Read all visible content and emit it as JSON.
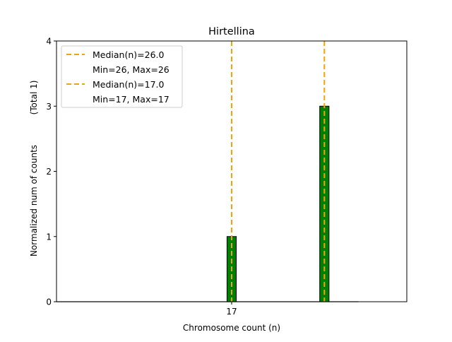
{
  "chart_data": {
    "type": "bar",
    "title": "Hirtellina",
    "xlabel": "Chromosome count (n)",
    "ylabel": "Normalized num of counts",
    "ylabel_note": "(Total 1)",
    "xlim": [
      0,
      34
    ],
    "ylim": [
      0,
      4
    ],
    "yticks": [
      0,
      1,
      2,
      3,
      4
    ],
    "xticks": [
      17
    ],
    "grid": false,
    "bars": [
      {
        "x": 17,
        "value": 1
      },
      {
        "x": 26,
        "value": 3
      }
    ],
    "bar_color": "#008000",
    "median_lines": [
      {
        "x": 26,
        "label": "Median(n)=26.0",
        "sublabel": "Min=26, Max=26"
      },
      {
        "x": 17,
        "label": "Median(n)=17.0",
        "sublabel": "Min=17, Max=17"
      }
    ],
    "median_color": "#f0a30a",
    "legend_position": "top-left"
  }
}
